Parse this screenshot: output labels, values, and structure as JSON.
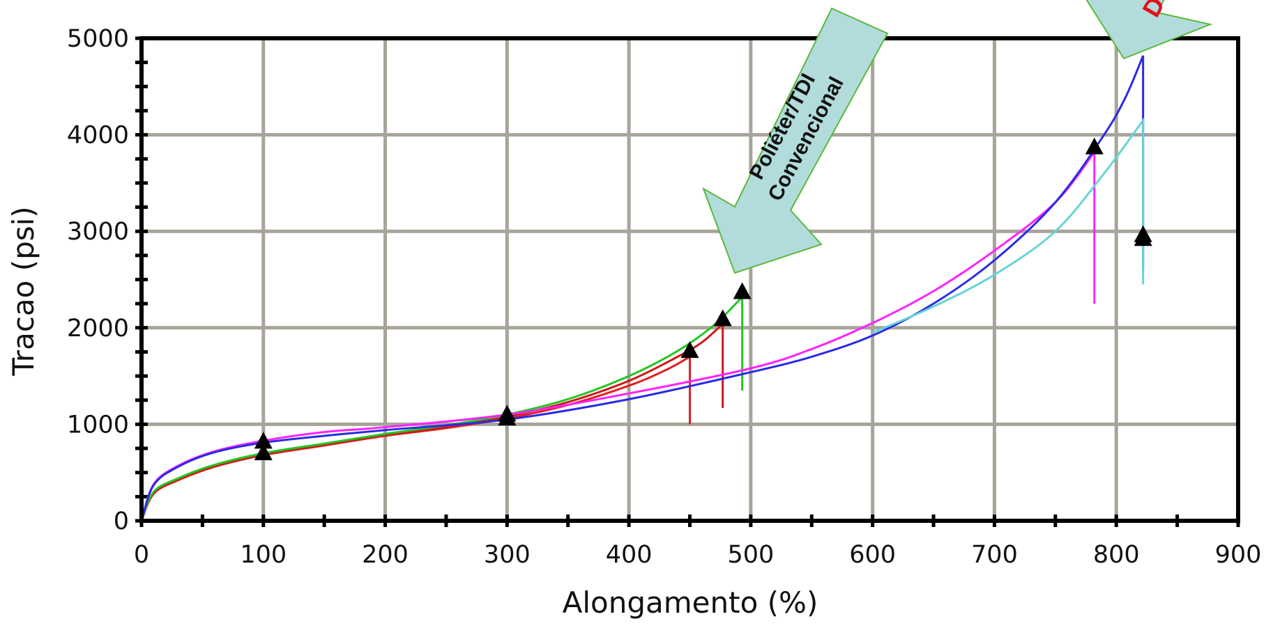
{
  "chart_data": {
    "type": "line",
    "xlabel": "Alongamento (%)",
    "ylabel": "Tracao (psi)",
    "xlim": [
      0,
      900
    ],
    "ylim": [
      0,
      5000
    ],
    "xticks": [
      "0",
      "100",
      "200",
      "300",
      "400",
      "500",
      "600",
      "700",
      "800",
      "900"
    ],
    "yticks": [
      "0",
      "1000",
      "2000",
      "3000",
      "4000",
      "5000"
    ],
    "grid": true,
    "series": [
      {
        "color": "#e02020",
        "points": [
          [
            0,
            0
          ],
          [
            10,
            280
          ],
          [
            30,
            420
          ],
          [
            60,
            560
          ],
          [
            100,
            680
          ],
          [
            150,
            780
          ],
          [
            200,
            880
          ],
          [
            250,
            960
          ],
          [
            300,
            1060
          ],
          [
            350,
            1200
          ],
          [
            400,
            1400
          ],
          [
            430,
            1560
          ],
          [
            450,
            1700
          ]
        ],
        "break_to": 1000
      },
      {
        "color": "#cc1818",
        "points": [
          [
            0,
            0
          ],
          [
            10,
            290
          ],
          [
            30,
            430
          ],
          [
            60,
            570
          ],
          [
            100,
            690
          ],
          [
            150,
            790
          ],
          [
            200,
            890
          ],
          [
            250,
            970
          ],
          [
            300,
            1080
          ],
          [
            350,
            1230
          ],
          [
            400,
            1450
          ],
          [
            440,
            1700
          ],
          [
            460,
            1850
          ],
          [
            477,
            2040
          ]
        ],
        "break_to": 1170
      },
      {
        "color": "#22c522",
        "points": [
          [
            0,
            0
          ],
          [
            10,
            300
          ],
          [
            30,
            440
          ],
          [
            60,
            580
          ],
          [
            100,
            700
          ],
          [
            150,
            800
          ],
          [
            200,
            900
          ],
          [
            250,
            990
          ],
          [
            300,
            1100
          ],
          [
            350,
            1260
          ],
          [
            400,
            1500
          ],
          [
            440,
            1760
          ],
          [
            470,
            2030
          ],
          [
            493,
            2320
          ]
        ],
        "break_to": 1350
      },
      {
        "color": "#ff22ff",
        "points": [
          [
            0,
            0
          ],
          [
            10,
            380
          ],
          [
            30,
            570
          ],
          [
            60,
            720
          ],
          [
            100,
            830
          ],
          [
            150,
            920
          ],
          [
            200,
            970
          ],
          [
            300,
            1100
          ],
          [
            400,
            1320
          ],
          [
            500,
            1580
          ],
          [
            550,
            1780
          ],
          [
            600,
            2050
          ],
          [
            650,
            2380
          ],
          [
            700,
            2800
          ],
          [
            750,
            3300
          ],
          [
            782,
            3820
          ]
        ],
        "break_to": 2250
      },
      {
        "color": "#2a2ae6",
        "points": [
          [
            0,
            0
          ],
          [
            10,
            370
          ],
          [
            30,
            560
          ],
          [
            60,
            710
          ],
          [
            100,
            810
          ],
          [
            150,
            880
          ],
          [
            200,
            940
          ],
          [
            300,
            1050
          ],
          [
            400,
            1260
          ],
          [
            500,
            1540
          ],
          [
            550,
            1700
          ],
          [
            600,
            1920
          ],
          [
            650,
            2250
          ],
          [
            700,
            2700
          ],
          [
            750,
            3300
          ],
          [
            790,
            4000
          ],
          [
            808,
            4400
          ],
          [
            822,
            4820
          ]
        ],
        "break_to": 2600
      },
      {
        "color": "#66d4d4",
        "points": [
          [
            600,
            1950
          ],
          [
            650,
            2220
          ],
          [
            700,
            2550
          ],
          [
            750,
            3000
          ],
          [
            790,
            3600
          ],
          [
            822,
            4150
          ]
        ],
        "break_to": 2450
      }
    ],
    "markers": [
      [
        100,
        820
      ],
      [
        100,
        700
      ],
      [
        300,
        1100
      ],
      [
        300,
        1060
      ],
      [
        450,
        1760
      ],
      [
        477,
        2090
      ],
      [
        493,
        2370
      ],
      [
        782,
        3870
      ],
      [
        822,
        2960
      ],
      [
        822,
        2920
      ]
    ],
    "annotations": [
      {
        "text_lines": [
          "Poliéter/TDI",
          "Convencional"
        ],
        "fill": "#b2dcdc",
        "stroke": "#5ab83a"
      },
      {
        "text_lines": [
          "D"
        ],
        "fill": "#b2dcdc",
        "stroke": "#5ab83a"
      }
    ]
  }
}
